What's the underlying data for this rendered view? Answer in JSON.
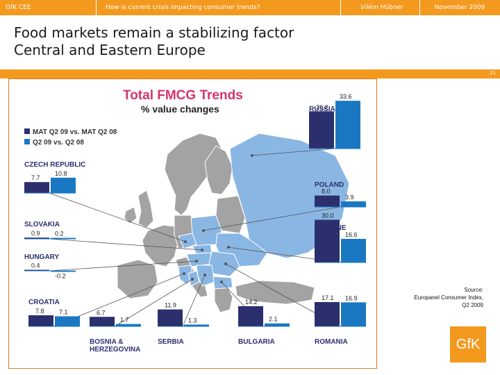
{
  "header": {
    "company": "GfK CEE",
    "subject": "How is current crisis impacting consumer trends?",
    "author": "Vilém Hübner",
    "date": "November  2009"
  },
  "slide": {
    "title_line1": "Food markets remain a stabilizing factor",
    "title_line2": "Central and Eastern Europe",
    "page_number": "21"
  },
  "colors": {
    "accent": "#f39a1e",
    "series_mat": "#2b2f6e",
    "series_q2": "#1a78c2",
    "title_pink": "#d6336c",
    "map_highlight": "#8ab6e3",
    "map_grey": "#a3a3a3"
  },
  "chart_data": {
    "type": "bar",
    "title": "Total FMCG Trends",
    "subtitle": "% value changes",
    "legend": [
      "MAT Q2 09 vs. MAT Q2 08",
      "Q2 09 vs. Q2 08"
    ],
    "series": [
      {
        "name": "MAT Q2 09 vs. MAT Q2 08",
        "values": [
          26.2,
          8.0,
          30.0,
          17.1,
          14.2,
          11.9,
          6.7,
          7.8,
          0.4,
          0.9,
          7.7
        ]
      },
      {
        "name": "Q2 09 vs. Q2 08",
        "values": [
          33.6,
          3.9,
          16.6,
          16.9,
          2.1,
          1.3,
          1.7,
          7.1,
          -0.2,
          0.2,
          10.8
        ]
      }
    ],
    "countries": [
      {
        "name": "RUSSIA",
        "mat": 26.2,
        "mat_label": "26.2",
        "q2": 33.6,
        "q2_label": "33.6"
      },
      {
        "name": "POLAND",
        "mat": 8.0,
        "mat_label": "8.0",
        "q2": 3.9,
        "q2_label": "3.9"
      },
      {
        "name": "UKRAINE",
        "mat": 30.0,
        "mat_label": "30.0",
        "q2": 16.6,
        "q2_label": "16.6"
      },
      {
        "name": "ROMANIA",
        "mat": 17.1,
        "mat_label": "17.1",
        "q2": 16.9,
        "q2_label": "16.9"
      },
      {
        "name": "BULGARIA",
        "mat": 14.2,
        "mat_label": "14.2",
        "q2": 2.1,
        "q2_label": "2.1"
      },
      {
        "name": "SERBIA",
        "mat": 11.9,
        "mat_label": "11.9",
        "q2": 1.3,
        "q2_label": "1.3"
      },
      {
        "name": "BOSNIA & HERZEGOVINA",
        "mat": 6.7,
        "mat_label": "6.7",
        "q2": 1.7,
        "q2_label": "1.7"
      },
      {
        "name": "CROATIA",
        "mat": 7.8,
        "mat_label": "7.8",
        "q2": 7.1,
        "q2_label": "7.1"
      },
      {
        "name": "HUNGARY",
        "mat": 0.4,
        "mat_label": "0.4",
        "q2": -0.2,
        "q2_label": "-0.2"
      },
      {
        "name": "SLOVAKIA",
        "mat": 0.9,
        "mat_label": "0.9",
        "q2": 0.2,
        "q2_label": "0.2"
      },
      {
        "name": "CZECH REPUBLIC",
        "mat": 7.7,
        "mat_label": "7.7",
        "q2": 10.8,
        "q2_label": "10.8"
      }
    ]
  },
  "source": {
    "line1": "Source:",
    "line2": "Europanel Consumer Index,",
    "line3": "Q2 2009"
  },
  "logo": {
    "text": "GfK"
  }
}
